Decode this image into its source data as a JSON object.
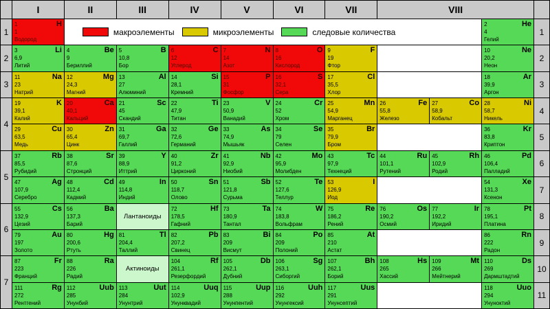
{
  "colors": {
    "macro": "#f10808",
    "micro": "#d8c900",
    "trace": "#56d956",
    "group_label_bg": "#ccf6cc",
    "header_bg": "#c9c9c9",
    "grid_line": "#000000",
    "blank_bg": "#ffffff"
  },
  "legend": {
    "items": [
      {
        "key": "macro",
        "label": "макроэлементы"
      },
      {
        "key": "micro",
        "label": "микроэлементы"
      },
      {
        "key": "trace",
        "label": "следовые количества"
      }
    ]
  },
  "column_headers": [
    {
      "label": "I",
      "span": 1
    },
    {
      "label": "II",
      "span": 1
    },
    {
      "label": "III",
      "span": 1
    },
    {
      "label": "IV",
      "span": 1
    },
    {
      "label": "V",
      "span": 1
    },
    {
      "label": "VI",
      "span": 1
    },
    {
      "label": "VII",
      "span": 1
    },
    {
      "label": "VIII",
      "span": 3
    }
  ],
  "periods": [
    {
      "label": "1",
      "span": 1
    },
    {
      "label": "2",
      "span": 1
    },
    {
      "label": "3",
      "span": 1
    },
    {
      "label": "4",
      "span": 2
    },
    {
      "label": "5",
      "span": 2
    },
    {
      "label": "6",
      "span": 2
    },
    {
      "label": "7",
      "span": 2
    }
  ],
  "right_row_numbers": [
    "1",
    "2",
    "3",
    "4",
    "5",
    "6",
    "7",
    "8",
    "9",
    "10",
    "11"
  ],
  "rows": [
    [
      {
        "t": "el",
        "n": "1",
        "s": "H",
        "m": "1",
        "name": "Водород",
        "c": "macro"
      },
      {
        "t": "legend",
        "span": 8
      },
      {
        "t": "el",
        "n": "2",
        "s": "He",
        "m": "4",
        "name": "Гелий",
        "c": "trace"
      }
    ],
    [
      {
        "t": "el",
        "n": "3",
        "s": "Li",
        "m": "6,9",
        "name": "Литий",
        "c": "trace"
      },
      {
        "t": "el",
        "n": "4",
        "s": "Be",
        "m": "9",
        "name": "Бериллий",
        "c": "trace"
      },
      {
        "t": "el",
        "n": "5",
        "s": "B",
        "m": "10,8",
        "name": "Бор",
        "c": "trace"
      },
      {
        "t": "el",
        "n": "6",
        "s": "C",
        "m": "12",
        "name": "Углерод",
        "c": "macro"
      },
      {
        "t": "el",
        "n": "7",
        "s": "N",
        "m": "14",
        "name": "Азот",
        "c": "macro"
      },
      {
        "t": "el",
        "n": "8",
        "s": "O",
        "m": "16",
        "name": "Кислород",
        "c": "macro"
      },
      {
        "t": "el",
        "n": "9",
        "s": "F",
        "m": "19",
        "name": "Фтор",
        "c": "micro"
      },
      {
        "t": "blank",
        "span": 2
      },
      {
        "t": "el",
        "n": "10",
        "s": "Ne",
        "m": "20,2",
        "name": "Неон",
        "c": "trace"
      }
    ],
    [
      {
        "t": "el",
        "n": "11",
        "s": "Na",
        "m": "23",
        "name": "Натрий",
        "c": "micro"
      },
      {
        "t": "el",
        "n": "12",
        "s": "Mg",
        "m": "24,3",
        "name": "Магний",
        "c": "micro"
      },
      {
        "t": "el",
        "n": "13",
        "s": "Al",
        "m": "27",
        "name": "Алюминий",
        "c": "trace"
      },
      {
        "t": "el",
        "n": "14",
        "s": "Si",
        "m": "28,1",
        "name": "Кремний",
        "c": "trace"
      },
      {
        "t": "el",
        "n": "15",
        "s": "P",
        "m": "31",
        "name": "Фосфор",
        "c": "macro"
      },
      {
        "t": "el",
        "n": "16",
        "s": "S",
        "m": "32,1",
        "name": "Сера",
        "c": "macro"
      },
      {
        "t": "el",
        "n": "17",
        "s": "Cl",
        "m": "35,5",
        "name": "Хлор",
        "c": "micro"
      },
      {
        "t": "blank",
        "span": 2
      },
      {
        "t": "el",
        "n": "18",
        "s": "Ar",
        "m": "39,9",
        "name": "Аргон",
        "c": "trace"
      }
    ],
    [
      {
        "t": "el",
        "n": "19",
        "s": "K",
        "m": "39,1",
        "name": "Калий",
        "c": "micro"
      },
      {
        "t": "el",
        "n": "20",
        "s": "Ca",
        "m": "40,1",
        "name": "Кальций",
        "c": "macro"
      },
      {
        "t": "el",
        "n": "21",
        "s": "Sc",
        "m": "45",
        "name": "Скандий",
        "c": "trace"
      },
      {
        "t": "el",
        "n": "22",
        "s": "Ti",
        "m": "47,9",
        "name": "Титан",
        "c": "trace"
      },
      {
        "t": "el",
        "n": "23",
        "s": "V",
        "m": "50,9",
        "name": "Ванадий",
        "c": "trace"
      },
      {
        "t": "el",
        "n": "24",
        "s": "Cr",
        "m": "52",
        "name": "Хром",
        "c": "trace"
      },
      {
        "t": "el",
        "n": "25",
        "s": "Mn",
        "m": "54,9",
        "name": "Марганец",
        "c": "micro"
      },
      {
        "t": "el",
        "n": "26",
        "s": "Fe",
        "m": "55,8",
        "name": "Железо",
        "c": "micro"
      },
      {
        "t": "el",
        "n": "27",
        "s": "Co",
        "m": "58,9",
        "name": "Кобальт",
        "c": "micro"
      },
      {
        "t": "el",
        "n": "28",
        "s": "Ni",
        "m": "58,7",
        "name": "Никель",
        "c": "micro"
      }
    ],
    [
      {
        "t": "el",
        "n": "29",
        "s": "Cu",
        "m": "63,5",
        "name": "Медь",
        "c": "micro"
      },
      {
        "t": "el",
        "n": "30",
        "s": "Zn",
        "m": "65,4",
        "name": "Цинк",
        "c": "micro"
      },
      {
        "t": "el",
        "n": "31",
        "s": "Ga",
        "m": "69,7",
        "name": "Галлий",
        "c": "trace"
      },
      {
        "t": "el",
        "n": "32",
        "s": "Ge",
        "m": "72,6",
        "name": "Германий",
        "c": "trace"
      },
      {
        "t": "el",
        "n": "33",
        "s": "As",
        "m": "74,9",
        "name": "Мышьяк",
        "c": "trace"
      },
      {
        "t": "el",
        "n": "34",
        "s": "Se",
        "m": "79",
        "name": "Селен",
        "c": "trace"
      },
      {
        "t": "el",
        "n": "35",
        "s": "Br",
        "m": "79,9",
        "name": "Бром",
        "c": "micro"
      },
      {
        "t": "blank",
        "span": 2
      },
      {
        "t": "el",
        "n": "36",
        "s": "Kr",
        "m": "83,8",
        "name": "Криптон",
        "c": "trace"
      }
    ],
    [
      {
        "t": "el",
        "n": "37",
        "s": "Rb",
        "m": "85,5",
        "name": "Рубидий",
        "c": "trace"
      },
      {
        "t": "el",
        "n": "38",
        "s": "Sr",
        "m": "87,6",
        "name": "Стронций",
        "c": "trace"
      },
      {
        "t": "el",
        "n": "39",
        "s": "Y",
        "m": "88,9",
        "name": "Иттрий",
        "c": "trace"
      },
      {
        "t": "el",
        "n": "40",
        "s": "Zr",
        "m": "91,2",
        "name": "Цирконий",
        "c": "trace"
      },
      {
        "t": "el",
        "n": "41",
        "s": "Nb",
        "m": "92,9",
        "name": "Ниобий",
        "c": "trace"
      },
      {
        "t": "el",
        "n": "42",
        "s": "Mo",
        "m": "95,9",
        "name": "Молибден",
        "c": "trace"
      },
      {
        "t": "el",
        "n": "43",
        "s": "Tc",
        "m": "97,9",
        "name": "Технеций",
        "c": "trace"
      },
      {
        "t": "el",
        "n": "44",
        "s": "Ru",
        "m": "101,1",
        "name": "Рутений",
        "c": "trace"
      },
      {
        "t": "el",
        "n": "45",
        "s": "Rh",
        "m": "102,9",
        "name": "Родий",
        "c": "trace"
      },
      {
        "t": "el",
        "n": "46",
        "s": "Pd",
        "m": "106,4",
        "name": "Палладий",
        "c": "trace"
      }
    ],
    [
      {
        "t": "el",
        "n": "47",
        "s": "Ag",
        "m": "107,9",
        "name": "Серебро",
        "c": "trace"
      },
      {
        "t": "el",
        "n": "48",
        "s": "Cd",
        "m": "112,4",
        "name": "Кадмий",
        "c": "trace"
      },
      {
        "t": "el",
        "n": "49",
        "s": "In",
        "m": "114,8",
        "name": "Индий",
        "c": "trace"
      },
      {
        "t": "el",
        "n": "50",
        "s": "Sn",
        "m": "118,7",
        "name": "Олово",
        "c": "trace"
      },
      {
        "t": "el",
        "n": "51",
        "s": "Sb",
        "m": "121,8",
        "name": "Сурьма",
        "c": "trace"
      },
      {
        "t": "el",
        "n": "52",
        "s": "Te",
        "m": "127,6",
        "name": "Теллур",
        "c": "trace"
      },
      {
        "t": "el",
        "n": "53",
        "s": "I",
        "m": "126,9",
        "name": "Иод",
        "c": "micro"
      },
      {
        "t": "blank",
        "span": 2
      },
      {
        "t": "el",
        "n": "54",
        "s": "Xe",
        "m": "131,3",
        "name": "Ксенон",
        "c": "trace"
      }
    ],
    [
      {
        "t": "el",
        "n": "55",
        "s": "Cs",
        "m": "132,9",
        "name": "Цезий",
        "c": "trace"
      },
      {
        "t": "el",
        "n": "56",
        "s": "Ba",
        "m": "137,3",
        "name": "Барий",
        "c": "trace"
      },
      {
        "t": "group",
        "id": "lanthanides",
        "label": "Лантаноиды"
      },
      {
        "t": "el",
        "n": "72",
        "s": "Hf",
        "m": "178,5",
        "name": "Гафний",
        "c": "trace"
      },
      {
        "t": "el",
        "n": "73",
        "s": "Ta",
        "m": "180,9",
        "name": "Тантал",
        "c": "trace"
      },
      {
        "t": "el",
        "n": "74",
        "s": "W",
        "m": "183,8",
        "name": "Вольфрам",
        "c": "trace"
      },
      {
        "t": "el",
        "n": "75",
        "s": "Re",
        "m": "186,2",
        "name": "Рений",
        "c": "trace"
      },
      {
        "t": "el",
        "n": "76",
        "s": "Os",
        "m": "190,2",
        "name": "Осмий",
        "c": "trace"
      },
      {
        "t": "el",
        "n": "77",
        "s": "Ir",
        "m": "192,2",
        "name": "Иридий",
        "c": "trace"
      },
      {
        "t": "el",
        "n": "78",
        "s": "Pt",
        "m": "195,1",
        "name": "Платина",
        "c": "trace"
      }
    ],
    [
      {
        "t": "el",
        "n": "79",
        "s": "Au",
        "m": "197",
        "name": "Золото",
        "c": "trace"
      },
      {
        "t": "el",
        "n": "80",
        "s": "Hg",
        "m": "200,6",
        "name": "Ртуть",
        "c": "trace"
      },
      {
        "t": "el",
        "n": "81",
        "s": "Tl",
        "m": "204,4",
        "name": "Таллий",
        "c": "trace"
      },
      {
        "t": "el",
        "n": "82",
        "s": "Pb",
        "m": "207,2",
        "name": "Свинец",
        "c": "trace"
      },
      {
        "t": "el",
        "n": "83",
        "s": "Bi",
        "m": "209",
        "name": "Висмут",
        "c": "trace"
      },
      {
        "t": "el",
        "n": "84",
        "s": "Po",
        "m": "209",
        "name": "Полоний",
        "c": "trace"
      },
      {
        "t": "el",
        "n": "85",
        "s": "At",
        "m": "210",
        "name": "Астат",
        "c": "trace"
      },
      {
        "t": "blank",
        "span": 2
      },
      {
        "t": "el",
        "n": "86",
        "s": "Rn",
        "m": "222",
        "name": "Радон",
        "c": "trace"
      }
    ],
    [
      {
        "t": "el",
        "n": "87",
        "s": "Fr",
        "m": "223",
        "name": "Франций",
        "c": "trace"
      },
      {
        "t": "el",
        "n": "88",
        "s": "Ra",
        "m": "226",
        "name": "Радий",
        "c": "trace"
      },
      {
        "t": "group",
        "id": "actinides",
        "label": "Актиноиды"
      },
      {
        "t": "el",
        "n": "104",
        "s": "Rf",
        "m": "261,1",
        "name": "Резерфордий",
        "c": "trace"
      },
      {
        "t": "el",
        "n": "105",
        "s": "Db",
        "m": "262,1",
        "name": "Дубний",
        "c": "trace"
      },
      {
        "t": "el",
        "n": "106",
        "s": "Sg",
        "m": "263,1",
        "name": "Сиборгий",
        "c": "trace"
      },
      {
        "t": "el",
        "n": "107",
        "s": "Bh",
        "m": "262,1",
        "name": "Борий",
        "c": "trace"
      },
      {
        "t": "el",
        "n": "108",
        "s": "Hs",
        "m": "265",
        "name": "Хассий",
        "c": "trace"
      },
      {
        "t": "el",
        "n": "109",
        "s": "Mt",
        "m": "266",
        "name": "Мейтнерий",
        "c": "trace"
      },
      {
        "t": "el",
        "n": "110",
        "s": "Ds",
        "m": "269",
        "name": "Дармштадтий",
        "c": "trace"
      }
    ],
    [
      {
        "t": "el",
        "n": "111",
        "s": "Rg",
        "m": "272",
        "name": "Рентгений",
        "c": "trace"
      },
      {
        "t": "el",
        "n": "112",
        "s": "Uub",
        "m": "285",
        "name": "Унунбий",
        "c": "trace"
      },
      {
        "t": "el",
        "n": "113",
        "s": "Uut",
        "m": "284",
        "name": "Унунтрий",
        "c": "trace"
      },
      {
        "t": "el",
        "n": "114",
        "s": "Uuq",
        "m": "102,9",
        "name": "Унунквадий",
        "c": "trace"
      },
      {
        "t": "el",
        "n": "115",
        "s": "Uup",
        "m": "288",
        "name": "Унунпентий",
        "c": "trace"
      },
      {
        "t": "el",
        "n": "116",
        "s": "Uuh",
        "m": "292",
        "name": "Унунгексий",
        "c": "trace"
      },
      {
        "t": "el",
        "n": "117",
        "s": "Uus",
        "m": "291",
        "name": "Унунсептий",
        "c": "trace"
      },
      {
        "t": "blank",
        "span": 2
      },
      {
        "t": "el",
        "n": "118",
        "s": "Uuo",
        "m": "294",
        "name": "Унуноктий",
        "c": "trace"
      }
    ]
  ]
}
